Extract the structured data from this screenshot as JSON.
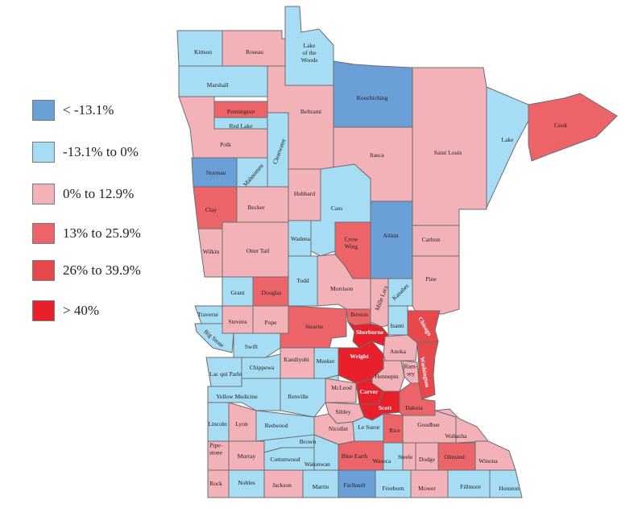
{
  "colors": {
    "lt_neg13": "#6a9fd8",
    "neg13_0": "#a6dcf4",
    "0_12": "#f3b1b8",
    "13_25": "#ec6468",
    "26_39": "#e8474c",
    "gt_40": "#e8202b"
  },
  "legend": [
    {
      "label": "< -13.1%",
      "color_key": "lt_neg13"
    },
    {
      "label": "-13.1% to 0%",
      "color_key": "neg13_0"
    },
    {
      "label": "0% to 12.9%",
      "color_key": "0_12"
    },
    {
      "label": "13% to 25.9%",
      "color_key": "13_25"
    },
    {
      "label": "26% to 39.9%",
      "color_key": "26_39"
    },
    {
      "label": "> 40%",
      "color_key": "gt_40"
    }
  ],
  "counties": [
    {
      "name": "Kittson",
      "bin": "neg13_0"
    },
    {
      "name": "Roseau",
      "bin": "0_12"
    },
    {
      "name": "Lake of the Woods",
      "bin": "neg13_0"
    },
    {
      "name": "Koochiching",
      "bin": "lt_neg13"
    },
    {
      "name": "Marshall",
      "bin": "neg13_0"
    },
    {
      "name": "Pennington",
      "bin": "13_25"
    },
    {
      "name": "Red Lake",
      "bin": "neg13_0"
    },
    {
      "name": "Polk",
      "bin": "0_12"
    },
    {
      "name": "Beltrami",
      "bin": "0_12"
    },
    {
      "name": "Clearwater",
      "bin": "neg13_0"
    },
    {
      "name": "Norman",
      "bin": "lt_neg13"
    },
    {
      "name": "Mahnomen",
      "bin": "neg13_0"
    },
    {
      "name": "Itasca",
      "bin": "0_12"
    },
    {
      "name": "Saint Louis",
      "bin": "0_12"
    },
    {
      "name": "Lake",
      "bin": "neg13_0"
    },
    {
      "name": "Cook",
      "bin": "13_25"
    },
    {
      "name": "Clay",
      "bin": "13_25"
    },
    {
      "name": "Becker",
      "bin": "0_12"
    },
    {
      "name": "Hubbard",
      "bin": "0_12"
    },
    {
      "name": "Cass",
      "bin": "neg13_0"
    },
    {
      "name": "Aitkin",
      "bin": "lt_neg13"
    },
    {
      "name": "Carlton",
      "bin": "0_12"
    },
    {
      "name": "Wilkin",
      "bin": "0_12"
    },
    {
      "name": "Otter Tail",
      "bin": "0_12"
    },
    {
      "name": "Wadena",
      "bin": "neg13_0"
    },
    {
      "name": "Crow Wing",
      "bin": "13_25"
    },
    {
      "name": "Pine",
      "bin": "0_12"
    },
    {
      "name": "Grant",
      "bin": "neg13_0"
    },
    {
      "name": "Douglas",
      "bin": "13_25"
    },
    {
      "name": "Todd",
      "bin": "neg13_0"
    },
    {
      "name": "Morrison",
      "bin": "0_12"
    },
    {
      "name": "Mille Lacs",
      "bin": "0_12"
    },
    {
      "name": "Kanabec",
      "bin": "neg13_0"
    },
    {
      "name": "Traverse",
      "bin": "neg13_0"
    },
    {
      "name": "Stevens",
      "bin": "0_12"
    },
    {
      "name": "Pope",
      "bin": "0_12"
    },
    {
      "name": "Stearns",
      "bin": "13_25"
    },
    {
      "name": "Benton",
      "bin": "13_25"
    },
    {
      "name": "Isanti",
      "bin": "neg13_0"
    },
    {
      "name": "Chisago",
      "bin": "26_39"
    },
    {
      "name": "Big Stone",
      "bin": "neg13_0"
    },
    {
      "name": "Swift",
      "bin": "neg13_0"
    },
    {
      "name": "Sherburne",
      "bin": "gt_40"
    },
    {
      "name": "Anoka",
      "bin": "0_12"
    },
    {
      "name": "Washington",
      "bin": "26_39"
    },
    {
      "name": "Chippewa",
      "bin": "neg13_0"
    },
    {
      "name": "Kandiyohi",
      "bin": "0_12"
    },
    {
      "name": "Meeker",
      "bin": "neg13_0"
    },
    {
      "name": "Wright",
      "bin": "gt_40"
    },
    {
      "name": "Hennepin",
      "bin": "0_12"
    },
    {
      "name": "Ramsey",
      "bin": "0_12"
    },
    {
      "name": "Lac qui Parle",
      "bin": "neg13_0"
    },
    {
      "name": "Yellow Medicine",
      "bin": "neg13_0"
    },
    {
      "name": "Renville",
      "bin": "neg13_0"
    },
    {
      "name": "McLeod",
      "bin": "0_12"
    },
    {
      "name": "Carver",
      "bin": "gt_40"
    },
    {
      "name": "Scott",
      "bin": "gt_40"
    },
    {
      "name": "Dakota",
      "bin": "13_25"
    },
    {
      "name": "Lincoln",
      "bin": "neg13_0"
    },
    {
      "name": "Lyon",
      "bin": "0_12"
    },
    {
      "name": "Redwood",
      "bin": "neg13_0"
    },
    {
      "name": "Sibley",
      "bin": "0_12"
    },
    {
      "name": "Nicollet",
      "bin": "0_12"
    },
    {
      "name": "Le Sueur",
      "bin": "neg13_0"
    },
    {
      "name": "Rice",
      "bin": "13_25"
    },
    {
      "name": "Goodhue",
      "bin": "0_12"
    },
    {
      "name": "Wabasha",
      "bin": "0_12"
    },
    {
      "name": "Brown",
      "bin": "neg13_0"
    },
    {
      "name": "Pipe-stone",
      "bin": "0_12"
    },
    {
      "name": "Murray",
      "bin": "0_12"
    },
    {
      "name": "Cottonwood",
      "bin": "neg13_0"
    },
    {
      "name": "Watonwan",
      "bin": "neg13_0"
    },
    {
      "name": "Blue Earth",
      "bin": "13_25"
    },
    {
      "name": "Waseca",
      "bin": "neg13_0"
    },
    {
      "name": "Steele",
      "bin": "0_12"
    },
    {
      "name": "Dodge",
      "bin": "0_12"
    },
    {
      "name": "Olmsted",
      "bin": "13_25"
    },
    {
      "name": "Winona",
      "bin": "0_12"
    },
    {
      "name": "Rock",
      "bin": "0_12"
    },
    {
      "name": "Nobles",
      "bin": "neg13_0"
    },
    {
      "name": "Jackson",
      "bin": "0_12"
    },
    {
      "name": "Martin",
      "bin": "neg13_0"
    },
    {
      "name": "Faribault",
      "bin": "lt_neg13"
    },
    {
      "name": "Freeborn",
      "bin": "neg13_0"
    },
    {
      "name": "Mower",
      "bin": "0_12"
    },
    {
      "name": "Fillmore",
      "bin": "neg13_0"
    },
    {
      "name": "Houston",
      "bin": "neg13_0"
    }
  ]
}
